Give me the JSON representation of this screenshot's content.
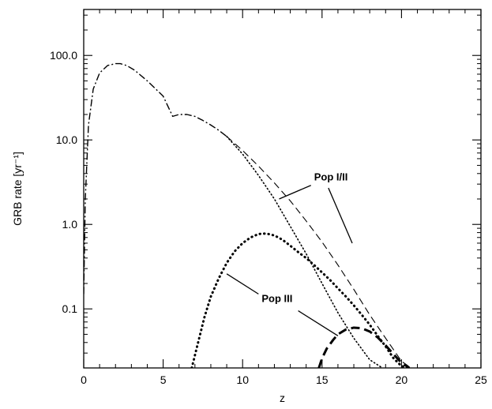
{
  "chart_data": {
    "type": "line",
    "title": "",
    "xlabel": "z",
    "ylabel": "GRB rate [yr⁻¹]",
    "xlim": [
      0,
      25
    ],
    "ylim": [
      0.02,
      350
    ],
    "yscale": "log",
    "grid": false,
    "x_ticks": [
      0,
      5,
      10,
      15,
      20,
      25
    ],
    "x_tick_labels": [
      "0",
      "5",
      "10",
      "15",
      "20",
      "25"
    ],
    "y_ticks": [
      0.1,
      1.0,
      10.0,
      100.0
    ],
    "y_tick_labels": [
      "0.1",
      "1.0",
      "10.0",
      "100.0"
    ],
    "series": [
      {
        "style": "dash-dot",
        "color": "#000000",
        "x": [
          0,
          0.1,
          0.3,
          0.6,
          1.0,
          1.5,
          2.0,
          2.3,
          2.7,
          3.2,
          4.0,
          5.0,
          5.6,
          6.0,
          6.5,
          7.0,
          7.5,
          8.0,
          8.5,
          9.0
        ],
        "y": [
          0.15,
          2.0,
          15,
          40,
          62,
          76,
          80,
          80,
          76,
          67,
          50,
          33,
          19,
          20,
          20,
          19,
          17,
          15,
          13,
          11
        ]
      },
      {
        "style": "dashed",
        "color": "#000000",
        "x": [
          9.0,
          10.0,
          11.0,
          12.0,
          13.0,
          14.0,
          15.0,
          16.0,
          17.0,
          18.0,
          19.0,
          20.0,
          20.6
        ],
        "y": [
          11,
          7.5,
          4.9,
          3.1,
          1.9,
          1.1,
          0.62,
          0.33,
          0.17,
          0.085,
          0.045,
          0.024,
          0.02
        ]
      },
      {
        "style": "dotted",
        "color": "#000000",
        "x": [
          9.0,
          10.0,
          11.0,
          12.0,
          13.0,
          14.0,
          15.0,
          16.0,
          17.0,
          18.0,
          18.8
        ],
        "y": [
          11,
          6.8,
          3.8,
          2.0,
          0.95,
          0.45,
          0.2,
          0.09,
          0.045,
          0.025,
          0.02
        ]
      },
      {
        "style": "bold-dotted",
        "color": "#000000",
        "x": [
          6.8,
          7.2,
          7.6,
          8.0,
          8.5,
          9.0,
          9.5,
          10.0,
          10.5,
          11.0,
          11.5,
          12.0,
          12.5,
          13.0,
          13.5,
          14.0,
          14.5,
          15.0,
          15.5,
          16.0,
          16.5,
          17.0,
          17.5,
          18.0,
          18.5,
          19.0,
          19.5,
          20.0,
          20.5
        ],
        "y": [
          0.02,
          0.04,
          0.08,
          0.14,
          0.23,
          0.35,
          0.48,
          0.6,
          0.7,
          0.77,
          0.78,
          0.74,
          0.66,
          0.56,
          0.47,
          0.4,
          0.33,
          0.27,
          0.22,
          0.175,
          0.14,
          0.11,
          0.085,
          0.065,
          0.048,
          0.036,
          0.026,
          0.021,
          0.02
        ]
      },
      {
        "style": "bold-dashed",
        "color": "#000000",
        "x": [
          14.8,
          15.0,
          15.3,
          15.7,
          16.0,
          16.5,
          17.0,
          17.5,
          18.0,
          18.5,
          19.0,
          19.5,
          20.0,
          20.5
        ],
        "y": [
          0.02,
          0.026,
          0.034,
          0.043,
          0.05,
          0.057,
          0.06,
          0.059,
          0.054,
          0.046,
          0.037,
          0.029,
          0.023,
          0.02
        ]
      }
    ],
    "annotations": [
      {
        "text": "Pop I/II",
        "text_x": 14.5,
        "text_y": 3.3,
        "pointers": [
          {
            "from": [
              14.3,
              2.9
            ],
            "to": [
              12.3,
              2.0
            ]
          },
          {
            "from": [
              15.4,
              2.7
            ],
            "to": [
              16.9,
              0.6
            ]
          }
        ]
      },
      {
        "text": "Pop III",
        "text_x": 11.2,
        "text_y": 0.12,
        "pointers": [
          {
            "from": [
              11.0,
              0.15
            ],
            "to": [
              9.0,
              0.26
            ]
          },
          {
            "from": [
              13.5,
              0.095
            ],
            "to": [
              16.0,
              0.048
            ]
          }
        ]
      }
    ]
  }
}
